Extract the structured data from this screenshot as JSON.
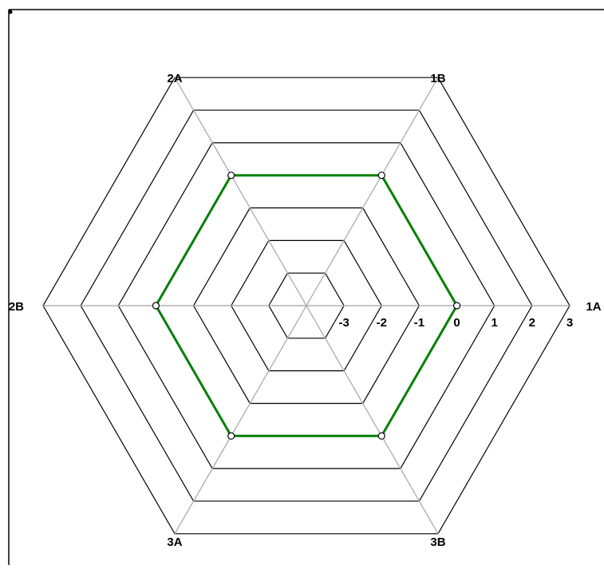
{
  "chart_data": {
    "type": "radar",
    "title": "",
    "axes": [
      "1A",
      "1B",
      "2A",
      "2B",
      "3A",
      "3B"
    ],
    "scale_ticks": [
      "-3",
      "-2",
      "-1",
      "0",
      "1",
      "2",
      "3"
    ],
    "range": [
      -4,
      3
    ],
    "grid": true,
    "series": [
      {
        "values": [
          0,
          0,
          0,
          0,
          0,
          0
        ],
        "color": "#008000"
      }
    ]
  },
  "colors": {
    "grid_ring": "#000000",
    "spoke": "#b0b0b0",
    "series_line": "#008000",
    "marker_fill": "#ffffff"
  }
}
